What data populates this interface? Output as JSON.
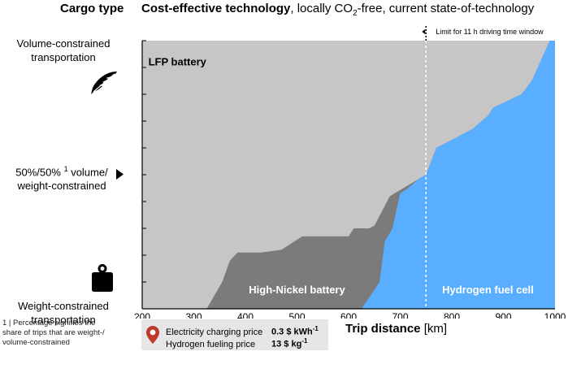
{
  "header": {
    "left_title": "Cargo type",
    "right_title_bold": "Cost-effective technology",
    "right_title_rest_pre": ", locally CO",
    "right_title_sub": "2",
    "right_title_rest_post": "-free, current state-of-technology"
  },
  "ylabels": {
    "top_line1": "Volume-constrained",
    "top_line2": "transportation",
    "mid_line1": "50%/50%",
    "mid_sup": "1",
    "mid_line1_rest": " volume/",
    "mid_line2": "weight-constrained",
    "bottom_line1": "Weight-constrained",
    "bottom_line2": "transportation"
  },
  "icons": {
    "top": "feather-icon",
    "mid": "triangle-right-icon",
    "bottom": "weight-icon",
    "price": "location-pin-icon"
  },
  "footnote": {
    "line1": "1 | Percentage signifies the",
    "line2": "share of trips that are weight-/",
    "line3": "volume-constrained"
  },
  "prices": {
    "electricity_label": "Electricity charging price",
    "electricity_value": "0.3 $ kWh",
    "electricity_sup": "-1",
    "hydrogen_label": "Hydrogen fueling price",
    "hydrogen_value": "13 $ kg",
    "hydrogen_sup": "-1"
  },
  "xaxis_title": {
    "bold": "Trip distance",
    "unit": " [km]"
  },
  "colors": {
    "lfp": "#c6c6c6",
    "nickel": "#7b7b7b",
    "hydrogen": "#5aaeff",
    "pin": "#c0392b"
  },
  "chart_data": {
    "type": "area",
    "xlim": [
      200,
      1000
    ],
    "ylim": [
      0,
      1
    ],
    "y_meaning": "share of trips that are weight-constrained (0 = volume-constrained, 1 = weight-constrained)",
    "x_ticks": [
      "200",
      "300",
      "400",
      "500",
      "600",
      "700",
      "800",
      "900",
      "1000"
    ],
    "y_ticks": [
      0,
      0.1,
      0.2,
      0.3,
      0.4,
      0.5,
      0.6,
      0.7,
      0.8,
      0.9,
      1.0
    ],
    "region_labels": {
      "lfp": "LFP battery",
      "nickel": "High-Nickel battery",
      "hydrogen": "Hydrogen fuel cell"
    },
    "annotation": {
      "text": "Limit for 11 h driving time window",
      "x": 750
    },
    "boundaries": {
      "lfp_lower_edge": [
        [
          325,
          1.0
        ],
        [
          355,
          0.9
        ],
        [
          370,
          0.82
        ],
        [
          385,
          0.79
        ],
        [
          430,
          0.79
        ],
        [
          470,
          0.78
        ],
        [
          510,
          0.73
        ],
        [
          600,
          0.73
        ],
        [
          610,
          0.7
        ],
        [
          640,
          0.7
        ],
        [
          650,
          0.69
        ],
        [
          680,
          0.58
        ],
        [
          750,
          0.5
        ],
        [
          770,
          0.4
        ],
        [
          820,
          0.35
        ],
        [
          840,
          0.33
        ],
        [
          870,
          0.28
        ],
        [
          880,
          0.25
        ],
        [
          935,
          0.2
        ],
        [
          955,
          0.15
        ],
        [
          990,
          0.0
        ]
      ],
      "hydrogen_left_edge": [
        [
          625,
          1.0
        ],
        [
          650,
          0.93
        ],
        [
          660,
          0.9
        ],
        [
          670,
          0.75
        ],
        [
          685,
          0.7
        ],
        [
          700,
          0.57
        ],
        [
          715,
          0.55
        ],
        [
          740,
          0.51
        ],
        [
          750,
          0.5
        ],
        [
          770,
          0.4
        ],
        [
          820,
          0.35
        ],
        [
          840,
          0.33
        ],
        [
          870,
          0.28
        ],
        [
          880,
          0.25
        ],
        [
          935,
          0.2
        ],
        [
          955,
          0.15
        ],
        [
          990,
          0.0
        ]
      ]
    }
  }
}
